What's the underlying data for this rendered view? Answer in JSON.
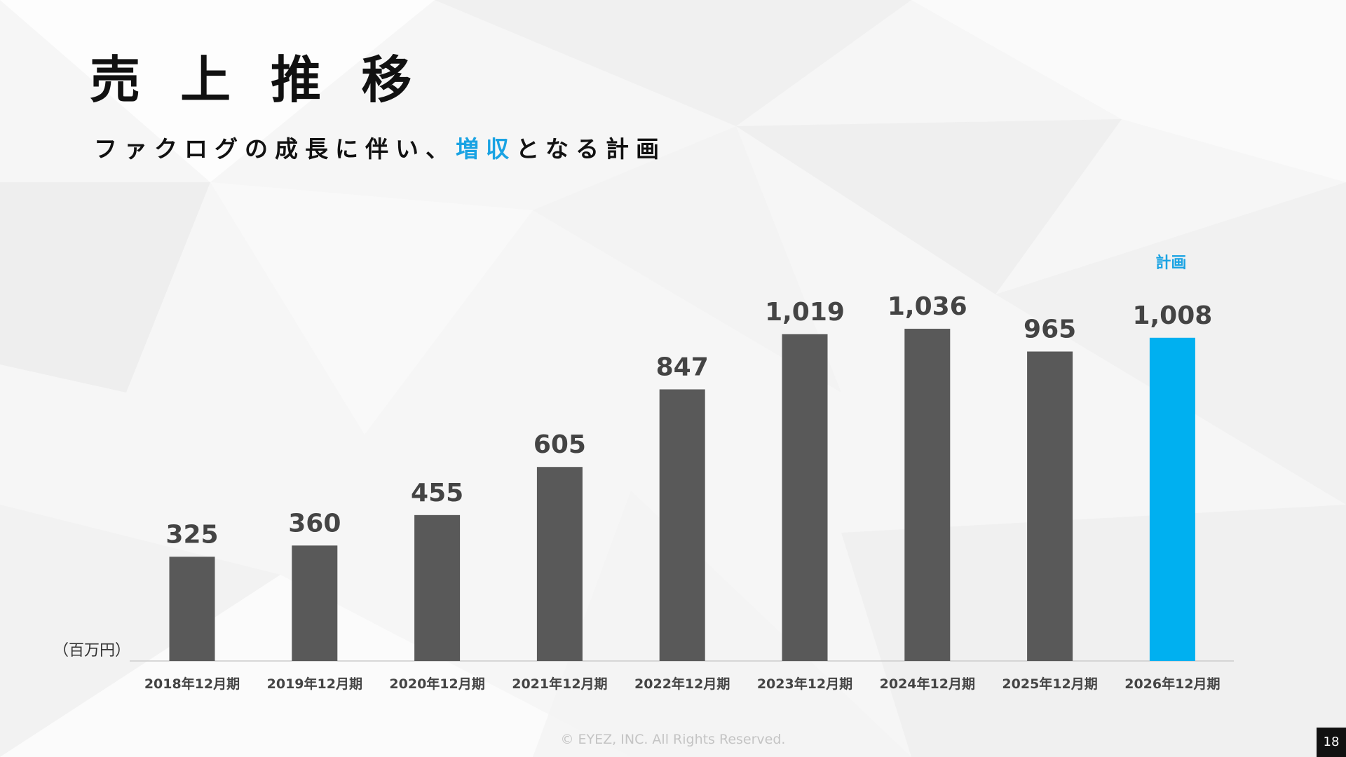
{
  "header": {
    "title": "売 上 推 移",
    "subtitle_prefix": "ファクログの成長に伴い、",
    "subtitle_highlight": "増収",
    "subtitle_suffix": "となる計画"
  },
  "unit_label": "（百万円）",
  "plan_label": "計画",
  "footer": {
    "copyright": "© EYEZ, INC. All Rights Reserved.",
    "page_number": "18"
  },
  "colors": {
    "actual_bar": "#595959",
    "plan_bar": "#00b0f0",
    "highlight": "#1aa3e3"
  },
  "chart_data": {
    "type": "bar",
    "title": "売上推移",
    "categories": [
      "2018年12月期",
      "2019年12月期",
      "2020年12月期",
      "2021年12月期",
      "2022年12月期",
      "2023年12月期",
      "2024年12月期",
      "2025年12月期",
      "2026年12月期"
    ],
    "values": [
      325,
      360,
      455,
      605,
      847,
      1019,
      1036,
      965,
      1008
    ],
    "value_labels": [
      "325",
      "360",
      "455",
      "605",
      "847",
      "1,019",
      "1,036",
      "965",
      "1,008"
    ],
    "highlighted_category": "2026年12月期",
    "ylabel": "（百万円）",
    "ylim": [
      0,
      1050
    ],
    "grid": false,
    "legend": "none"
  }
}
